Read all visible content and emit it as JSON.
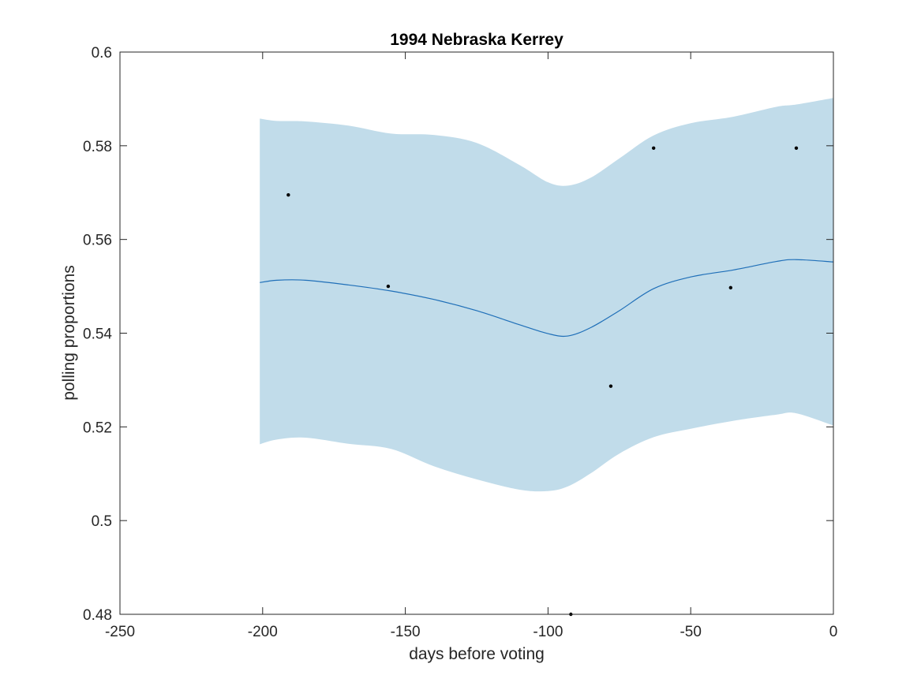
{
  "chart_data": {
    "type": "line",
    "title": "1994 Nebraska Kerrey",
    "xlabel": "days before voting",
    "ylabel": "polling proportions",
    "xlim": [
      -250,
      0
    ],
    "ylim": [
      0.48,
      0.6
    ],
    "xticks": [
      -250,
      -200,
      -150,
      -100,
      -50,
      0
    ],
    "xtick_labels": [
      "-250",
      "-200",
      "-150",
      "-100",
      "-50",
      "0"
    ],
    "yticks": [
      0.48,
      0.5,
      0.52,
      0.54,
      0.56,
      0.58,
      0.6
    ],
    "ytick_labels": [
      "0.48",
      "0.5",
      "0.52",
      "0.54",
      "0.56",
      "0.58",
      "0.6"
    ],
    "grid": false,
    "colors": {
      "band": "#c1dcea",
      "line": "#1f6fb8",
      "points": "#000000",
      "axes": "#262626"
    },
    "band": {
      "x": [
        -201,
        -195,
        -185,
        -170,
        -155,
        -140,
        -125,
        -110,
        -100,
        -93,
        -85,
        -75,
        -63,
        -50,
        -35,
        -20,
        -13,
        0
      ],
      "upper": [
        0.5858,
        0.5853,
        0.5852,
        0.5843,
        0.5826,
        0.5823,
        0.5806,
        0.5759,
        0.5722,
        0.5715,
        0.5732,
        0.5773,
        0.5822,
        0.5848,
        0.5862,
        0.5883,
        0.5888,
        0.5902
      ],
      "lower": [
        0.5163,
        0.5173,
        0.5177,
        0.5164,
        0.5153,
        0.5116,
        0.5088,
        0.5066,
        0.5063,
        0.5073,
        0.5101,
        0.5143,
        0.5178,
        0.5196,
        0.5213,
        0.5226,
        0.5229,
        0.5203
      ]
    },
    "series": [
      {
        "values_x": [
          -201,
          -195,
          -185,
          -170,
          -155,
          -140,
          -125,
          -110,
          -100,
          -93,
          -85,
          -75,
          -63,
          -50,
          -35,
          -20,
          -13,
          0
        ],
        "values_y": [
          0.5508,
          0.5513,
          0.5513,
          0.5503,
          0.549,
          0.5472,
          0.5448,
          0.5418,
          0.5399,
          0.5394,
          0.5412,
          0.5448,
          0.5495,
          0.552,
          0.5535,
          0.5553,
          0.5557,
          0.5552
        ]
      }
    ],
    "points": {
      "x": [
        -191,
        -156,
        -92,
        -78,
        -63,
        -36,
        -13
      ],
      "y": [
        0.5695,
        0.55,
        0.48,
        0.5287,
        0.5795,
        0.5497,
        0.5795
      ]
    }
  }
}
